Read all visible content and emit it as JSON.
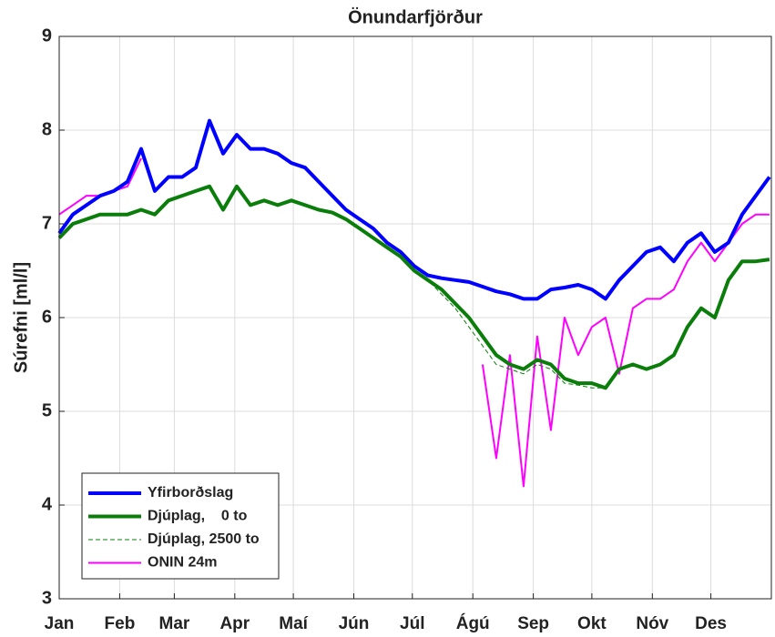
{
  "chart_data": {
    "type": "line",
    "title": "Önundarfjörður",
    "ylabel": "Súrefni [ml/l]",
    "x": [
      1,
      8,
      15,
      22,
      29,
      36,
      43,
      50,
      57,
      64,
      71,
      78,
      85,
      92,
      99,
      106,
      113,
      120,
      127,
      134,
      141,
      148,
      155,
      162,
      169,
      176,
      183,
      190,
      197,
      204,
      211,
      218,
      225,
      232,
      239,
      246,
      253,
      260,
      267,
      274,
      281,
      288,
      295,
      302,
      309,
      316,
      323,
      330,
      337,
      344,
      351,
      358,
      365
    ],
    "xlim": [
      1,
      366
    ],
    "xticks": [
      {
        "value": 1,
        "label": "Jan"
      },
      {
        "value": 32,
        "label": "Feb"
      },
      {
        "value": 60,
        "label": "Mar"
      },
      {
        "value": 91,
        "label": "Apr"
      },
      {
        "value": 121,
        "label": "Maí"
      },
      {
        "value": 152,
        "label": "Jún"
      },
      {
        "value": 182,
        "label": "Júl"
      },
      {
        "value": 213,
        "label": "Ágú"
      },
      {
        "value": 244,
        "label": "Sep"
      },
      {
        "value": 274,
        "label": "Okt"
      },
      {
        "value": 305,
        "label": "Nóv"
      },
      {
        "value": 335,
        "label": "Des"
      }
    ],
    "ylim": [
      3,
      9
    ],
    "yticks": [
      3,
      4,
      5,
      6,
      7,
      8,
      9
    ],
    "grid": true,
    "legend": "lower left",
    "series": [
      {
        "name": "Yfirborðslag",
        "color": "#0000ff",
        "linewidth": 4,
        "linestyle": "solid",
        "values": [
          6.9,
          7.1,
          7.2,
          7.3,
          7.35,
          7.45,
          7.8,
          7.35,
          7.5,
          7.5,
          7.6,
          8.1,
          7.75,
          7.95,
          7.8,
          7.8,
          7.75,
          7.65,
          7.6,
          7.45,
          7.3,
          7.15,
          7.05,
          6.95,
          6.8,
          6.7,
          6.55,
          6.45,
          6.42,
          6.4,
          6.38,
          6.33,
          6.28,
          6.25,
          6.2,
          6.2,
          6.3,
          6.32,
          6.35,
          6.3,
          6.2,
          6.4,
          6.55,
          6.7,
          6.75,
          6.6,
          6.8,
          6.9,
          6.7,
          6.8,
          7.1,
          7.3,
          7.5
        ]
      },
      {
        "name": "Djúplag,    0 to",
        "color": "#0a7d0a",
        "linewidth": 4,
        "linestyle": "solid",
        "values": [
          6.85,
          7.0,
          7.05,
          7.1,
          7.1,
          7.1,
          7.15,
          7.1,
          7.25,
          7.3,
          7.35,
          7.4,
          7.15,
          7.4,
          7.2,
          7.25,
          7.2,
          7.25,
          7.2,
          7.15,
          7.12,
          7.05,
          6.95,
          6.85,
          6.75,
          6.65,
          6.5,
          6.4,
          6.3,
          6.15,
          6.0,
          5.8,
          5.6,
          5.5,
          5.45,
          5.55,
          5.5,
          5.35,
          5.3,
          5.3,
          5.25,
          5.45,
          5.5,
          5.45,
          5.5,
          5.6,
          5.9,
          6.1,
          6.0,
          6.4,
          6.6,
          6.6,
          6.62
        ]
      },
      {
        "name": "Djúplag, 2500 to",
        "color": "#0a7d0a",
        "linewidth": 1,
        "linestyle": "dashed",
        "values": [
          6.85,
          7.0,
          7.05,
          7.1,
          7.1,
          7.1,
          7.15,
          7.1,
          7.25,
          7.3,
          7.35,
          7.4,
          7.15,
          7.4,
          7.2,
          7.25,
          7.2,
          7.25,
          7.2,
          7.15,
          7.12,
          7.05,
          6.95,
          6.85,
          6.75,
          6.65,
          6.5,
          6.4,
          6.25,
          6.1,
          5.9,
          5.7,
          5.5,
          5.45,
          5.4,
          5.5,
          5.45,
          5.3,
          5.28,
          5.25,
          5.25,
          5.45,
          5.5,
          5.45,
          5.5,
          5.6,
          5.9,
          6.1,
          6.0,
          6.4,
          6.6,
          6.6,
          6.62
        ]
      },
      {
        "name": "ONIN 24m",
        "color": "#ff00ff",
        "linewidth": 2,
        "linestyle": "solid",
        "values": [
          7.1,
          7.2,
          7.3,
          7.3,
          7.35,
          7.4,
          7.7,
          null,
          null,
          null,
          null,
          null,
          null,
          null,
          null,
          null,
          null,
          null,
          null,
          null,
          null,
          null,
          null,
          null,
          null,
          null,
          null,
          null,
          null,
          null,
          null,
          5.5,
          4.5,
          5.6,
          4.2,
          5.8,
          4.8,
          6.0,
          5.6,
          5.9,
          6.0,
          5.4,
          6.1,
          6.2,
          6.2,
          6.3,
          6.6,
          6.8,
          6.6,
          6.8,
          7.0,
          7.1,
          7.1
        ]
      }
    ]
  }
}
